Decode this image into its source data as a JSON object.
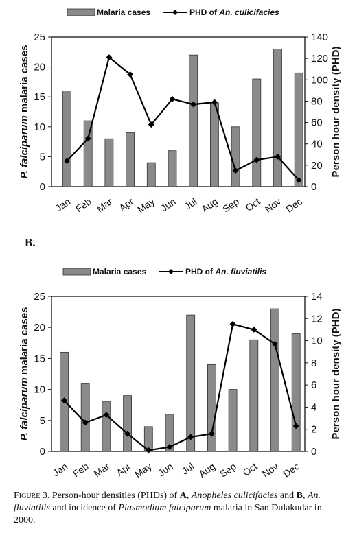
{
  "panel_b_label": "B.",
  "caption": {
    "figure": "Figure 3.",
    "part1": "Person-hour densities (PHDs) of ",
    "a": "A",
    "part2": ", ",
    "species_a": "Anopheles culicifacies",
    "part3": " and ",
    "b": "B",
    "part4": ", ",
    "species_b": "An. fluviatilis",
    "part5": " and incidence of ",
    "pathogen": "Plasmodium falciparum",
    "part6": " malaria in San Dulakudar in 2000."
  },
  "chart_data": [
    {
      "type": "bar",
      "categories": [
        "Jan",
        "Feb",
        "Mar",
        "Apr",
        "May",
        "Jun",
        "Jul",
        "Aug",
        "Sep",
        "Oct",
        "Nov",
        "Dec"
      ],
      "series": [
        {
          "name": "Malaria cases",
          "type": "bar",
          "axis": "left",
          "values": [
            16,
            11,
            8,
            9,
            4,
            6,
            22,
            14,
            10,
            18,
            23,
            19
          ]
        },
        {
          "name_prefix": "PHD of ",
          "name_species": "An. culicifacies",
          "type": "line",
          "axis": "right",
          "values": [
            24,
            45,
            121,
            105,
            58,
            82,
            77,
            79,
            15,
            25,
            28,
            6
          ]
        }
      ],
      "ylabel": "P. falciparum malaria cases",
      "ylabel_italic": "P. falciparum",
      "ylabel_rest": " malaria cases",
      "y2label": "Person hour density (PHD)",
      "ylim": [
        0,
        25
      ],
      "y2lim": [
        0,
        140
      ],
      "yticks": [
        0,
        5,
        10,
        15,
        20,
        25
      ],
      "y2ticks": [
        0,
        20,
        40,
        60,
        80,
        100,
        120,
        140
      ],
      "bar_color": "#8a8a8a",
      "line_color": "#000000",
      "grid": false,
      "legend": "top"
    },
    {
      "type": "bar",
      "categories": [
        "Jan",
        "Feb",
        "Mar",
        "Apr",
        "May",
        "Jun",
        "Jul",
        "Aug",
        "Sep",
        "Oct",
        "Nov",
        "Dec"
      ],
      "series": [
        {
          "name": "Malaria cases",
          "type": "bar",
          "axis": "left",
          "values": [
            16,
            11,
            8,
            9,
            4,
            6,
            22,
            14,
            10,
            18,
            23,
            19
          ]
        },
        {
          "name_prefix": "PHD of ",
          "name_species": "An. fluviatilis",
          "type": "line",
          "axis": "right",
          "values": [
            4.6,
            2.6,
            3.3,
            1.6,
            0.1,
            0.4,
            1.3,
            1.6,
            11.5,
            11.0,
            9.7,
            2.3
          ]
        }
      ],
      "ylabel": "P. falciparum malaria cases",
      "ylabel_italic": "P. falciparum",
      "ylabel_rest": " malaria cases",
      "y2label": "Person hour density (PHD)",
      "ylim": [
        0,
        25
      ],
      "y2lim": [
        0,
        14
      ],
      "yticks": [
        0,
        5,
        10,
        15,
        20,
        25
      ],
      "y2ticks": [
        0,
        2,
        4,
        6,
        8,
        10,
        12,
        14
      ],
      "bar_color": "#8a8a8a",
      "line_color": "#000000",
      "grid": false,
      "legend": "top"
    }
  ]
}
